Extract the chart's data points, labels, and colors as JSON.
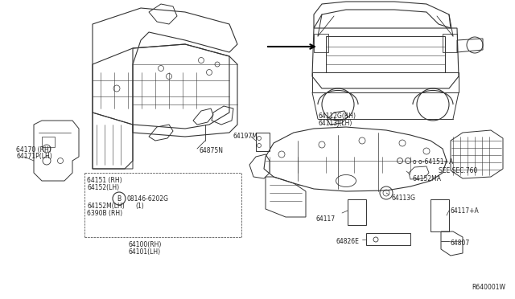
{
  "bg_color": "#ffffff",
  "line_color": "#333333",
  "text_color": "#222222",
  "fig_width": 6.4,
  "fig_height": 3.72,
  "dpi": 100,
  "labels": {
    "64170_rh": "64170 (RH)",
    "64171p_lh": "64171P(LH)",
    "64151_rh": "64151 (RH)",
    "64152_lh": "64152(LH)",
    "64152m_lh": "64152M(LH)",
    "6390b_rh": "6390B (RH)",
    "64100_rh": "64100(RH)",
    "64101_lh": "64101(LH)",
    "64875n": "64875N",
    "08146_6202g": "08146-6202G",
    "b_circle": "B",
    "num_1": "(1)",
    "64112g_rh": "64112G(RH)",
    "64113j_lh": "64113J(LH)",
    "64197m": "64197M",
    "64151a": "o o-64151+A",
    "see_sec": "SEE SEC.760",
    "64152ma": "64152MA",
    "64113g": "64113G",
    "64117": "64117",
    "64117a": "64117+A",
    "64826e": "64826E",
    "64807": "64807",
    "r640001w": "R640001W"
  }
}
